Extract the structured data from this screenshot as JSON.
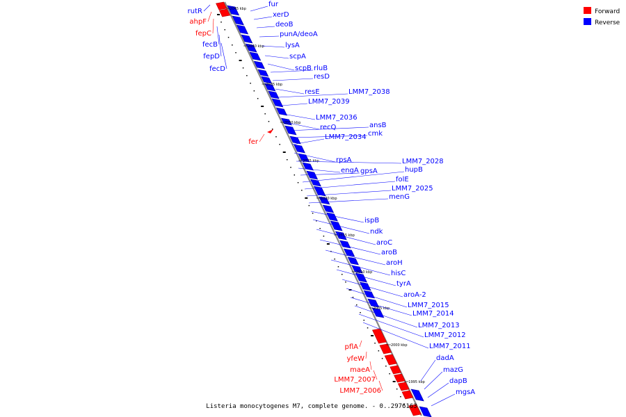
{
  "caption": "Listeria monocytogenes M7, complete genome. - 0..2976163",
  "colors": {
    "forward": "#ff0000",
    "reverse": "#0000ff",
    "forward_dark": "#b00000",
    "reverse_dark": "#0000a0",
    "backbone": "#888888"
  },
  "legend": [
    {
      "label": "Forward",
      "color": "#ff0000"
    },
    {
      "label": "Reverse",
      "color": "#0000ff"
    }
  ],
  "ticks": [
    "2045 kbp",
    "2040 kbp",
    "2035 kbp",
    "2030 kbp",
    "2025 kbp",
    "2020 kbp",
    "2015 kbp",
    "2010 kbp",
    "2005 kbp",
    "2000 kbp",
    "1995 kbp"
  ],
  "genes_left": [
    {
      "name": "rutR",
      "strand": "reverse"
    },
    {
      "name": "ahpF",
      "strand": "forward"
    },
    {
      "name": "fepC",
      "strand": "forward"
    },
    {
      "name": "fecB",
      "strand": "reverse"
    },
    {
      "name": "fepD",
      "strand": "reverse"
    },
    {
      "name": "fecD",
      "strand": "reverse"
    },
    {
      "name": "fer",
      "strand": "forward"
    },
    {
      "name": "pflA",
      "strand": "forward"
    },
    {
      "name": "yfeW",
      "strand": "forward"
    },
    {
      "name": "maeA",
      "strand": "forward"
    },
    {
      "name": "LMM7_2007",
      "strand": "forward"
    },
    {
      "name": "LMM7_2006",
      "strand": "forward"
    }
  ],
  "genes_right": [
    {
      "name": "fur",
      "strand": "reverse"
    },
    {
      "name": "xerD",
      "strand": "reverse"
    },
    {
      "name": "deoB",
      "strand": "reverse"
    },
    {
      "name": "punA/deoA",
      "strand": "reverse"
    },
    {
      "name": "lysA",
      "strand": "reverse"
    },
    {
      "name": "scpA",
      "strand": "reverse"
    },
    {
      "name": "scpB",
      "strand": "reverse"
    },
    {
      "name": "rluB",
      "strand": "reverse"
    },
    {
      "name": "resD",
      "strand": "reverse"
    },
    {
      "name": "resE",
      "strand": "reverse"
    },
    {
      "name": "LMM7_2038",
      "strand": "reverse"
    },
    {
      "name": "LMM7_2039",
      "strand": "reverse"
    },
    {
      "name": "LMM7_2036",
      "strand": "reverse"
    },
    {
      "name": "recQ",
      "strand": "reverse"
    },
    {
      "name": "ansB",
      "strand": "reverse"
    },
    {
      "name": "cmk",
      "strand": "reverse"
    },
    {
      "name": "LMM7_2034",
      "strand": "reverse"
    },
    {
      "name": "rpsA",
      "strand": "reverse"
    },
    {
      "name": "LMM7_2028",
      "strand": "reverse"
    },
    {
      "name": "engA",
      "strand": "reverse"
    },
    {
      "name": "gpsA",
      "strand": "reverse"
    },
    {
      "name": "hupB",
      "strand": "reverse"
    },
    {
      "name": "folE",
      "strand": "reverse"
    },
    {
      "name": "LMM7_2025",
      "strand": "reverse"
    },
    {
      "name": "menG",
      "strand": "reverse"
    },
    {
      "name": "ispB",
      "strand": "reverse"
    },
    {
      "name": "ndk",
      "strand": "reverse"
    },
    {
      "name": "aroC",
      "strand": "reverse"
    },
    {
      "name": "aroB",
      "strand": "reverse"
    },
    {
      "name": "aroH",
      "strand": "reverse"
    },
    {
      "name": "hisC",
      "strand": "reverse"
    },
    {
      "name": "tyrA",
      "strand": "reverse"
    },
    {
      "name": "aroA-2",
      "strand": "reverse"
    },
    {
      "name": "LMM7_2015",
      "strand": "reverse"
    },
    {
      "name": "LMM7_2014",
      "strand": "reverse"
    },
    {
      "name": "LMM7_2013",
      "strand": "reverse"
    },
    {
      "name": "LMM7_2012",
      "strand": "reverse"
    },
    {
      "name": "LMM7_2011",
      "strand": "reverse"
    },
    {
      "name": "dadA",
      "strand": "reverse"
    },
    {
      "name": "mazG",
      "strand": "reverse"
    },
    {
      "name": "dapB",
      "strand": "reverse"
    },
    {
      "name": "mgsA",
      "strand": "reverse"
    }
  ]
}
